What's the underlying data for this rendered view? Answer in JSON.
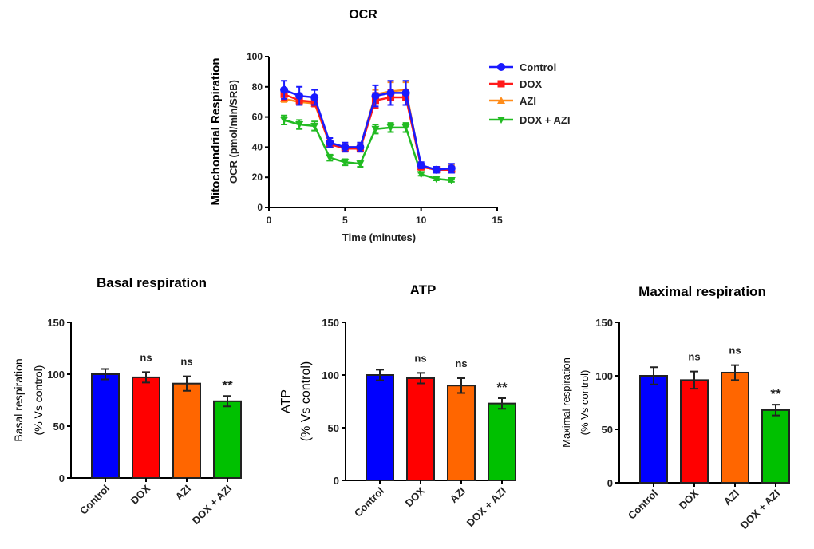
{
  "chart_data": [
    {
      "type": "line",
      "title": "OCR",
      "ylabel_line1": "Mitochondrial Respiration",
      "ylabel_line2": "OCR (pmol/min/SRB)",
      "xlabel": "Time (minutes)",
      "xlim": [
        0,
        15
      ],
      "ylim": [
        0,
        100
      ],
      "xticks": [
        0,
        5,
        10,
        15
      ],
      "yticks": [
        0,
        20,
        40,
        60,
        80,
        100
      ],
      "legend_position": "right",
      "x": [
        1,
        2,
        3,
        4,
        5,
        6,
        7,
        8,
        9,
        10,
        11,
        12
      ],
      "series": [
        {
          "name": "Control",
          "color": "#1a1aff",
          "marker": "circle",
          "values": [
            78,
            74,
            73,
            43,
            40,
            40,
            74,
            76,
            76,
            28,
            25,
            26
          ],
          "errors": [
            6,
            6,
            5,
            3,
            3,
            3,
            7,
            8,
            8,
            2,
            2,
            3
          ]
        },
        {
          "name": "DOX",
          "color": "#ff1a1a",
          "marker": "square",
          "values": [
            75,
            71,
            70,
            42,
            39,
            39,
            71,
            73,
            73,
            27,
            25,
            25
          ],
          "errors": [
            4,
            3,
            3,
            2,
            2,
            2,
            5,
            5,
            5,
            2,
            2,
            2
          ]
        },
        {
          "name": "AZI",
          "color": "#ff8c1a",
          "marker": "triangle-up",
          "values": [
            72,
            70,
            69,
            42,
            40,
            40,
            75,
            77,
            78,
            27,
            25,
            26
          ],
          "errors": [
            2,
            2,
            2,
            2,
            2,
            2,
            3,
            6,
            5,
            2,
            2,
            2
          ]
        },
        {
          "name": "DOX + AZI",
          "color": "#22bb22",
          "marker": "triangle-down",
          "values": [
            58,
            55,
            54,
            33,
            30,
            29,
            52,
            53,
            53,
            22,
            19,
            18
          ],
          "errors": [
            3,
            3,
            3,
            2,
            2,
            2,
            3,
            3,
            3,
            1,
            1,
            1
          ]
        }
      ]
    },
    {
      "type": "bar",
      "title": "Basal respiration",
      "ylabel_line1": "Basal respiration",
      "ylabel_line2": "(% Vs control)",
      "ylim": [
        0,
        150
      ],
      "yticks": [
        0,
        50,
        100,
        150
      ],
      "categories": [
        "Control",
        "DOX",
        "AZI",
        "DOX + AZI"
      ],
      "colors": [
        "#0000ff",
        "#ff0000",
        "#ff6600",
        "#00c000"
      ],
      "values": [
        100,
        97,
        91,
        74
      ],
      "errors": [
        5,
        5,
        7,
        5
      ],
      "annotations": [
        "",
        "ns",
        "ns",
        "**"
      ]
    },
    {
      "type": "bar",
      "title": "ATP",
      "ylabel_line1": "ATP",
      "ylabel_line2": "(% Vs control)",
      "ylim": [
        0,
        150
      ],
      "yticks": [
        0,
        50,
        100,
        150
      ],
      "categories": [
        "Control",
        "DOX",
        "AZI",
        "DOX + AZI"
      ],
      "colors": [
        "#0000ff",
        "#ff0000",
        "#ff6600",
        "#00c000"
      ],
      "values": [
        100,
        97,
        90,
        73
      ],
      "errors": [
        5,
        5,
        7,
        5
      ],
      "annotations": [
        "",
        "ns",
        "ns",
        "**"
      ]
    },
    {
      "type": "bar",
      "title": "Maximal respiration",
      "ylabel_line1": "Maximal respiration",
      "ylabel_line2": "(% Vs control)",
      "ylim": [
        0,
        150
      ],
      "yticks": [
        0,
        50,
        100,
        150
      ],
      "categories": [
        "Control",
        "DOX",
        "AZI",
        "DOX + AZI"
      ],
      "colors": [
        "#0000ff",
        "#ff0000",
        "#ff6600",
        "#00c000"
      ],
      "values": [
        100,
        96,
        103,
        68
      ],
      "errors": [
        8,
        8,
        7,
        5
      ],
      "annotations": [
        "",
        "ns",
        "ns",
        "**"
      ]
    }
  ]
}
